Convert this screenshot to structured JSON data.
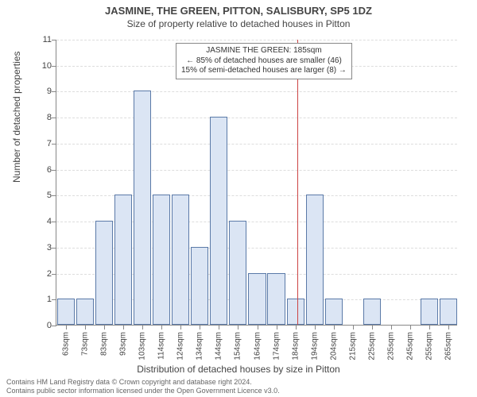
{
  "chart": {
    "type": "histogram",
    "title": "JASMINE, THE GREEN, PITTON, SALISBURY, SP5 1DZ",
    "subtitle": "Size of property relative to detached houses in Pitton",
    "xlabel": "Distribution of detached houses by size in Pitton",
    "ylabel": "Number of detached properties",
    "title_fontsize": 13,
    "subtitle_fontsize": 12,
    "label_fontsize": 12,
    "tick_fontsize": 11,
    "background_color": "#ffffff",
    "bar_fill": "#dbe5f4",
    "bar_stroke": "#5b7aa8",
    "grid_color": "#dddddd",
    "axis_color": "#888888",
    "marker_color": "#cc4444",
    "ylim": [
      0,
      11
    ],
    "ytick_step": 1,
    "xticks": [
      "63sqm",
      "73sqm",
      "83sqm",
      "93sqm",
      "103sqm",
      "114sqm",
      "124sqm",
      "134sqm",
      "144sqm",
      "154sqm",
      "164sqm",
      "174sqm",
      "184sqm",
      "194sqm",
      "204sqm",
      "215sqm",
      "225sqm",
      "235sqm",
      "245sqm",
      "255sqm",
      "265sqm"
    ],
    "bins": [
      {
        "x": 63,
        "count": 1
      },
      {
        "x": 73,
        "count": 1
      },
      {
        "x": 83,
        "count": 4
      },
      {
        "x": 93,
        "count": 5
      },
      {
        "x": 103,
        "count": 9
      },
      {
        "x": 114,
        "count": 5
      },
      {
        "x": 124,
        "count": 5
      },
      {
        "x": 134,
        "count": 3
      },
      {
        "x": 144,
        "count": 8
      },
      {
        "x": 154,
        "count": 4
      },
      {
        "x": 164,
        "count": 2
      },
      {
        "x": 174,
        "count": 2
      },
      {
        "x": 184,
        "count": 1
      },
      {
        "x": 194,
        "count": 5
      },
      {
        "x": 204,
        "count": 1
      },
      {
        "x": 215,
        "count": 0
      },
      {
        "x": 225,
        "count": 1
      },
      {
        "x": 235,
        "count": 0
      },
      {
        "x": 245,
        "count": 0
      },
      {
        "x": 255,
        "count": 1
      },
      {
        "x": 265,
        "count": 1
      }
    ],
    "marker_x": 185,
    "annotation": {
      "line1": "JASMINE THE GREEN: 185sqm",
      "line2": "← 85% of detached houses are smaller (46)",
      "line3": "15% of semi-detached houses are larger (8) →"
    },
    "footer1": "Contains HM Land Registry data © Crown copyright and database right 2024.",
    "footer2": "Contains public sector information licensed under the Open Government Licence v3.0."
  }
}
